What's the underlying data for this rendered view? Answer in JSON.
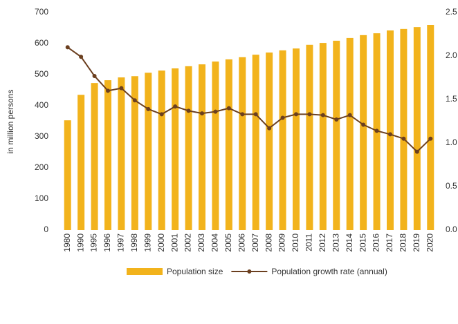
{
  "chart_data": {
    "type": "bar-line",
    "y_label": "in million persons",
    "categories": [
      "1980",
      "1990",
      "1995",
      "1996",
      "1997",
      "1998",
      "1999",
      "2000",
      "2001",
      "2002",
      "2003",
      "2004",
      "2005",
      "2006",
      "2007",
      "2008",
      "2009",
      "2010",
      "2011",
      "2012",
      "2013",
      "2014",
      "2015",
      "2016",
      "2017",
      "2018",
      "2019",
      "2020"
    ],
    "series": [
      {
        "name": "Population size",
        "type": "bar",
        "color": "#f2b31c",
        "values": [
          353,
          435,
          473,
          482,
          491,
          495,
          506,
          513,
          520,
          527,
          533,
          542,
          549,
          556,
          564,
          571,
          578,
          584,
          596,
          602,
          609,
          618,
          627,
          633,
          642,
          647,
          653,
          660
        ]
      },
      {
        "name": "Population growth rate (annual)",
        "type": "line",
        "color": "#6b3f1f",
        "axis": "y2",
        "values": [
          2.1,
          1.99,
          1.77,
          1.6,
          1.63,
          1.49,
          1.39,
          1.33,
          1.42,
          1.37,
          1.34,
          1.36,
          1.4,
          1.33,
          1.33,
          1.17,
          1.29,
          1.33,
          1.33,
          1.32,
          1.27,
          1.32,
          1.21,
          1.14,
          1.1,
          1.05,
          0.9,
          1.05
        ]
      }
    ],
    "ylim": [
      0,
      700
    ],
    "yticks": [
      0,
      100,
      200,
      300,
      400,
      500,
      600,
      700
    ],
    "y2lim": [
      0,
      2.5
    ],
    "y2ticks": [
      {
        "value": 0,
        "label": "0.0"
      },
      0.5,
      {
        "value": 1,
        "label": "1.0"
      },
      1.5,
      {
        "value": 2,
        "label": "2.0"
      },
      2.5
    ],
    "legend": "bottom",
    "grid": false
  }
}
